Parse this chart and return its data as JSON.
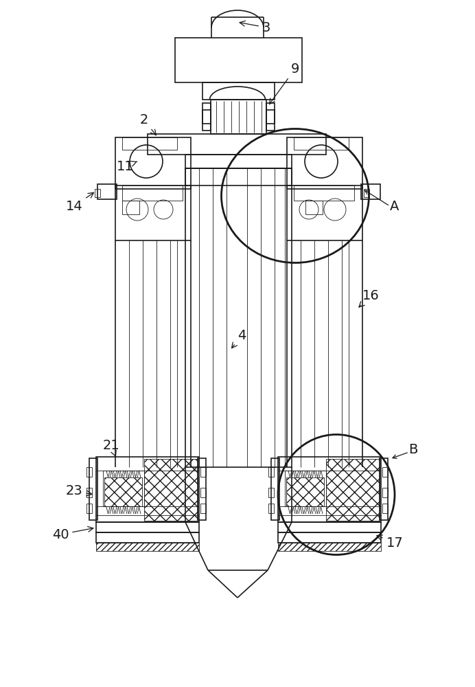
{
  "bg_color": "#ffffff",
  "line_color": "#1a1a1a",
  "lw": 1.2,
  "lw2": 0.6,
  "lw3": 2.0,
  "fs": 14
}
